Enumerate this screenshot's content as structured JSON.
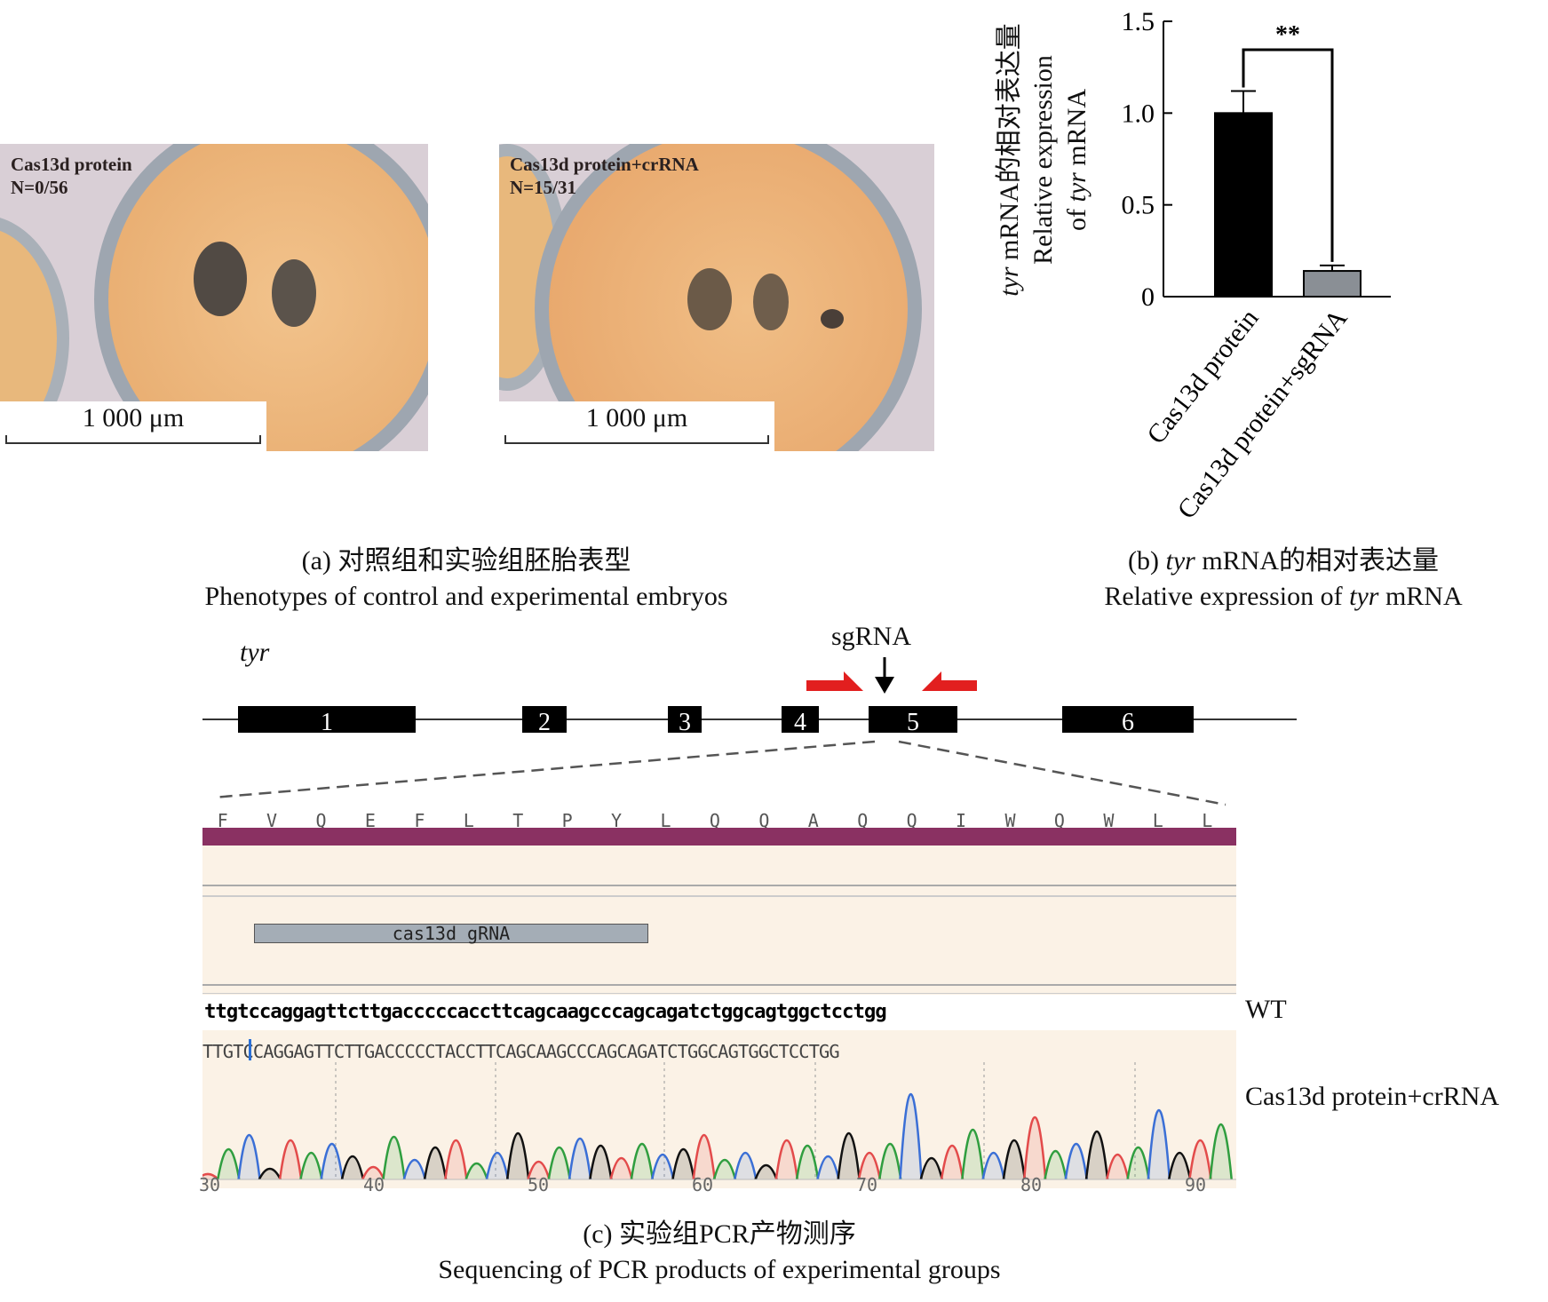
{
  "panel_a": {
    "left_label": "Cas13d protein",
    "left_n": "N=0/56",
    "right_label": "Cas13d protein+crRNA",
    "right_n": "N=15/31",
    "scale_left": "1 000 μm",
    "scale_right": "1 000 μm",
    "caption_cn": "(a) 对照组和实验组胚胎表型",
    "caption_en": "Phenotypes of control and experimental embryos"
  },
  "panel_b": {
    "ylabel_line1_italic": "tyr",
    "ylabel_line1_rest": " mRNA的相对表达量",
    "ylabel_line2": "Relative expression",
    "ylabel_line3_pre": "of ",
    "ylabel_line3_italic": "tyr",
    "ylabel_line3_post": " mRNA",
    "significance": "**",
    "caption_cn_pre": "(b) ",
    "caption_cn_italic": "tyr",
    "caption_cn_post": " mRNA的相对表达量",
    "caption_en_pre": "Relative expression of ",
    "caption_en_italic": "tyr",
    "caption_en_post": " mRNA"
  },
  "chart_data": {
    "type": "bar",
    "categories": [
      "Cas13d protein",
      "Cas13d protein+sgRNA"
    ],
    "values": [
      1.0,
      0.14
    ],
    "errors": [
      0.12,
      0.03
    ],
    "colors": [
      "#000000",
      "#8a8f95"
    ],
    "ylim": [
      0,
      1.5
    ],
    "yticks": [
      "0",
      "0.5",
      "1.0",
      "1.5"
    ],
    "ytick_values": [
      0,
      0.5,
      1.0,
      1.5
    ],
    "ylabel": "tyr mRNA的相对表达量 Relative expression of tyr mRNA",
    "xlabel": "",
    "title": ""
  },
  "panel_c": {
    "gene": "tyr",
    "sgrna_label": "sgRNA",
    "exons": [
      "1",
      "2",
      "3",
      "4",
      "5",
      "6"
    ],
    "amino_acids": [
      "F",
      "V",
      "Q",
      "E",
      "F",
      "L",
      "T",
      "P",
      "Y",
      "L",
      "Q",
      "Q",
      "A",
      "Q",
      "Q",
      "I",
      "W",
      "Q",
      "W",
      "L",
      "L"
    ],
    "grna_label": "cas13d gRNA",
    "wt_seq": "ttgtccaggagttcttgacccccaccttcagcaagcccagcagatctggcagtggctcctgg",
    "wt_label": "WT",
    "mut_seq": "TTGTCCAGGAGTTCTTGACCCCCTACCTTCAGCAAGCCCAGCAGATCTGGCAGTGGCTCCTGG",
    "mut_label": "Cas13d protein+crRNA",
    "positions": [
      "30",
      "40",
      "50",
      "60",
      "70",
      "80",
      "90"
    ],
    "caption_cn": "(c) 实验组PCR产物测序",
    "caption_en": "Sequencing of PCR products of experimental groups"
  }
}
